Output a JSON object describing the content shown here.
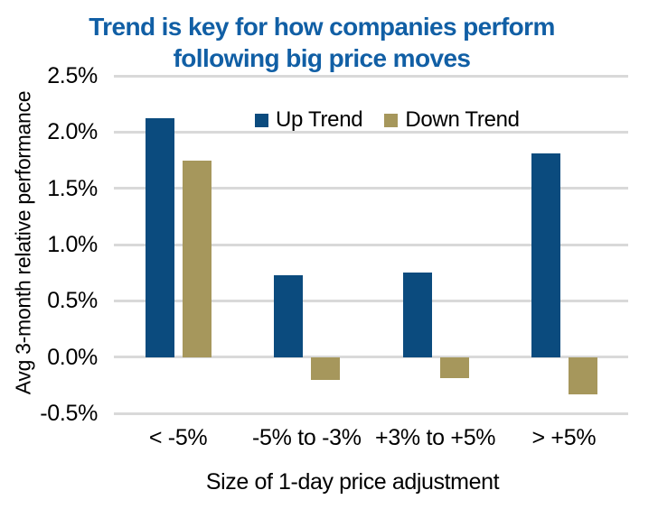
{
  "title": {
    "text": "Trend is key for how companies perform\nfollowing big price moves",
    "color": "#115fa5"
  },
  "chart_data": {
    "type": "bar",
    "title": "Trend is key for how companies perform following big price moves",
    "categories": [
      "< -5%",
      "-5% to -3%",
      "+3% to +5%",
      "> +5%"
    ],
    "series": [
      {
        "name": "Up Trend",
        "color": "#0b4b7e",
        "values": [
          2.12,
          0.73,
          0.75,
          1.81
        ]
      },
      {
        "name": "Down Trend",
        "color": "#a6975c",
        "values": [
          1.75,
          -0.2,
          -0.19,
          -0.33
        ]
      }
    ],
    "xlabel": "Size of 1-day price adjustment",
    "ylabel": "Avg 3-month relative performance",
    "ylim": [
      -0.5,
      2.5
    ],
    "ytick_step": 0.5,
    "ytick_labels": [
      "2.5%",
      "2.0%",
      "1.5%",
      "1.0%",
      "0.5%",
      "0.0%",
      "-0.5%"
    ],
    "grid": true,
    "gridline_color": "#d9d9d9",
    "legend_position": "top-center",
    "text_color": "#000000"
  }
}
